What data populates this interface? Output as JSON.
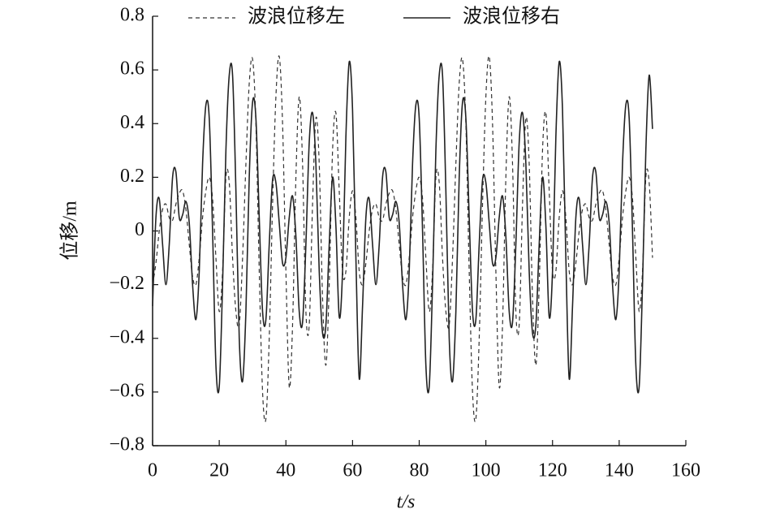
{
  "chart_data": {
    "type": "line",
    "xlabel": "t/s",
    "ylabel": "位移/m",
    "x": [
      0,
      1,
      2,
      3,
      4,
      5,
      6,
      7,
      8,
      9,
      10,
      11,
      12,
      13,
      14,
      15,
      16,
      17,
      18,
      19,
      20,
      21,
      22,
      23,
      24,
      25,
      26,
      27,
      28,
      29,
      30,
      31,
      32,
      33,
      34,
      35,
      36,
      37,
      38,
      39,
      40,
      41,
      42,
      43,
      44,
      45,
      46,
      47,
      48,
      49,
      50,
      51,
      52,
      53,
      54,
      55,
      56,
      57,
      58,
      59,
      60,
      61,
      62,
      63,
      64,
      65,
      66,
      67,
      68,
      69,
      70,
      71,
      72,
      73,
      74,
      75,
      76,
      77,
      78,
      79,
      80,
      81,
      82,
      83,
      84,
      85,
      86,
      87,
      88,
      89,
      90,
      91,
      92,
      93,
      94,
      95,
      96,
      97,
      98,
      99,
      100,
      101,
      102,
      103,
      104,
      105,
      106,
      107,
      108,
      109,
      110,
      111,
      112,
      113,
      114,
      115,
      116,
      117,
      118,
      119,
      120,
      121,
      122,
      123,
      124,
      125,
      126,
      127,
      128,
      129,
      130,
      131,
      132,
      133,
      134,
      135,
      136,
      137,
      138,
      139,
      140,
      141,
      142,
      143,
      144,
      145,
      146,
      147,
      148,
      149,
      150
    ],
    "series": [
      {
        "name": "波浪位移左",
        "color": "#333333",
        "style": "dashed",
        "values": [
          -0.2,
          -0.12,
          0.0,
          0.08,
          0.1,
          0.05,
          0.04,
          0.1,
          0.14,
          0.15,
          0.08,
          -0.05,
          -0.17,
          -0.2,
          -0.1,
          0.05,
          0.15,
          0.2,
          0.12,
          -0.1,
          -0.3,
          -0.15,
          0.2,
          0.18,
          -0.1,
          -0.3,
          -0.35,
          -0.1,
          0.25,
          0.55,
          0.64,
          0.4,
          -0.15,
          -0.6,
          -0.7,
          -0.4,
          0.1,
          0.5,
          0.65,
          0.4,
          -0.15,
          -0.58,
          -0.35,
          0.2,
          0.5,
          0.25,
          -0.3,
          -0.35,
          0.1,
          0.42,
          0.25,
          -0.25,
          -0.5,
          -0.2,
          0.3,
          0.44,
          0.15,
          -0.15,
          -0.15,
          0.05,
          0.15,
          0.05,
          -0.15,
          -0.2,
          -0.12,
          0.0,
          0.08,
          0.1,
          0.05,
          0.04,
          0.1,
          0.14,
          0.15,
          0.08,
          -0.05,
          -0.17,
          -0.2,
          -0.1,
          0.05,
          0.15,
          0.2,
          0.12,
          -0.1,
          -0.3,
          -0.15,
          0.2,
          0.18,
          -0.1,
          -0.3,
          -0.35,
          -0.1,
          0.25,
          0.55,
          0.64,
          0.4,
          -0.15,
          -0.6,
          -0.7,
          -0.4,
          0.1,
          0.5,
          0.65,
          0.4,
          -0.15,
          -0.58,
          -0.35,
          0.2,
          0.5,
          0.25,
          -0.3,
          -0.35,
          0.1,
          0.42,
          0.25,
          -0.25,
          -0.5,
          -0.2,
          0.3,
          0.44,
          0.15,
          -0.15,
          -0.15,
          0.05,
          0.15,
          0.05,
          -0.15,
          -0.2,
          -0.12,
          0.0,
          0.08,
          0.1,
          0.05,
          0.04,
          0.1,
          0.14,
          0.15,
          0.08,
          -0.05,
          -0.17,
          -0.2,
          -0.1,
          0.05,
          0.15,
          0.2,
          0.12,
          -0.1,
          -0.3,
          -0.15,
          0.2,
          0.18,
          -0.1
        ]
      },
      {
        "name": "波浪位移右",
        "color": "#222222",
        "style": "solid",
        "values": [
          -0.28,
          0.05,
          0.12,
          -0.05,
          -0.2,
          -0.05,
          0.2,
          0.22,
          0.05,
          0.06,
          0.11,
          0.03,
          -0.2,
          -0.33,
          -0.15,
          0.25,
          0.47,
          0.42,
          0.0,
          -0.5,
          -0.58,
          -0.2,
          0.3,
          0.58,
          0.58,
          0.15,
          -0.4,
          -0.56,
          -0.3,
          0.2,
          0.48,
          0.42,
          0.05,
          -0.3,
          -0.33,
          -0.05,
          0.19,
          0.18,
          0.03,
          -0.12,
          -0.1,
          0.05,
          0.13,
          -0.02,
          -0.3,
          -0.34,
          -0.05,
          0.33,
          0.44,
          0.25,
          -0.15,
          -0.38,
          -0.35,
          -0.05,
          0.2,
          0.02,
          -0.32,
          -0.15,
          0.35,
          0.63,
          0.45,
          -0.1,
          -0.55,
          -0.28,
          0.05,
          0.12,
          -0.05,
          -0.2,
          -0.05,
          0.2,
          0.22,
          0.05,
          0.06,
          0.11,
          0.03,
          -0.2,
          -0.33,
          -0.15,
          0.25,
          0.47,
          0.42,
          0.0,
          -0.5,
          -0.58,
          -0.2,
          0.3,
          0.58,
          0.58,
          0.15,
          -0.4,
          -0.56,
          -0.3,
          0.2,
          0.48,
          0.42,
          0.05,
          -0.3,
          -0.33,
          -0.05,
          0.19,
          0.18,
          0.03,
          -0.12,
          -0.1,
          0.05,
          0.13,
          -0.02,
          -0.3,
          -0.34,
          -0.05,
          0.33,
          0.44,
          0.25,
          -0.15,
          -0.38,
          -0.35,
          -0.05,
          0.2,
          0.02,
          -0.32,
          -0.15,
          0.35,
          0.63,
          0.45,
          -0.1,
          -0.55,
          -0.28,
          0.05,
          0.12,
          -0.05,
          -0.2,
          -0.05,
          0.2,
          0.22,
          0.05,
          0.06,
          0.11,
          0.03,
          -0.2,
          -0.33,
          -0.15,
          0.25,
          0.47,
          0.42,
          0.0,
          -0.5,
          -0.58,
          -0.2,
          0.3,
          0.58,
          0.38
        ]
      }
    ],
    "xlim": [
      0,
      160
    ],
    "xticks": [
      0,
      20,
      40,
      60,
      80,
      100,
      120,
      140,
      160
    ],
    "ylim": [
      -0.8,
      0.8
    ],
    "yticks": [
      {
        "value": -0.8,
        "label": "−0.8"
      },
      {
        "value": -0.6,
        "label": "−0.6"
      },
      {
        "value": -0.4,
        "label": "−0.4"
      },
      {
        "value": -0.2,
        "label": "−0.2"
      },
      0,
      0.2,
      0.4,
      0.6,
      0.8
    ],
    "grid": false,
    "legend": "top"
  }
}
